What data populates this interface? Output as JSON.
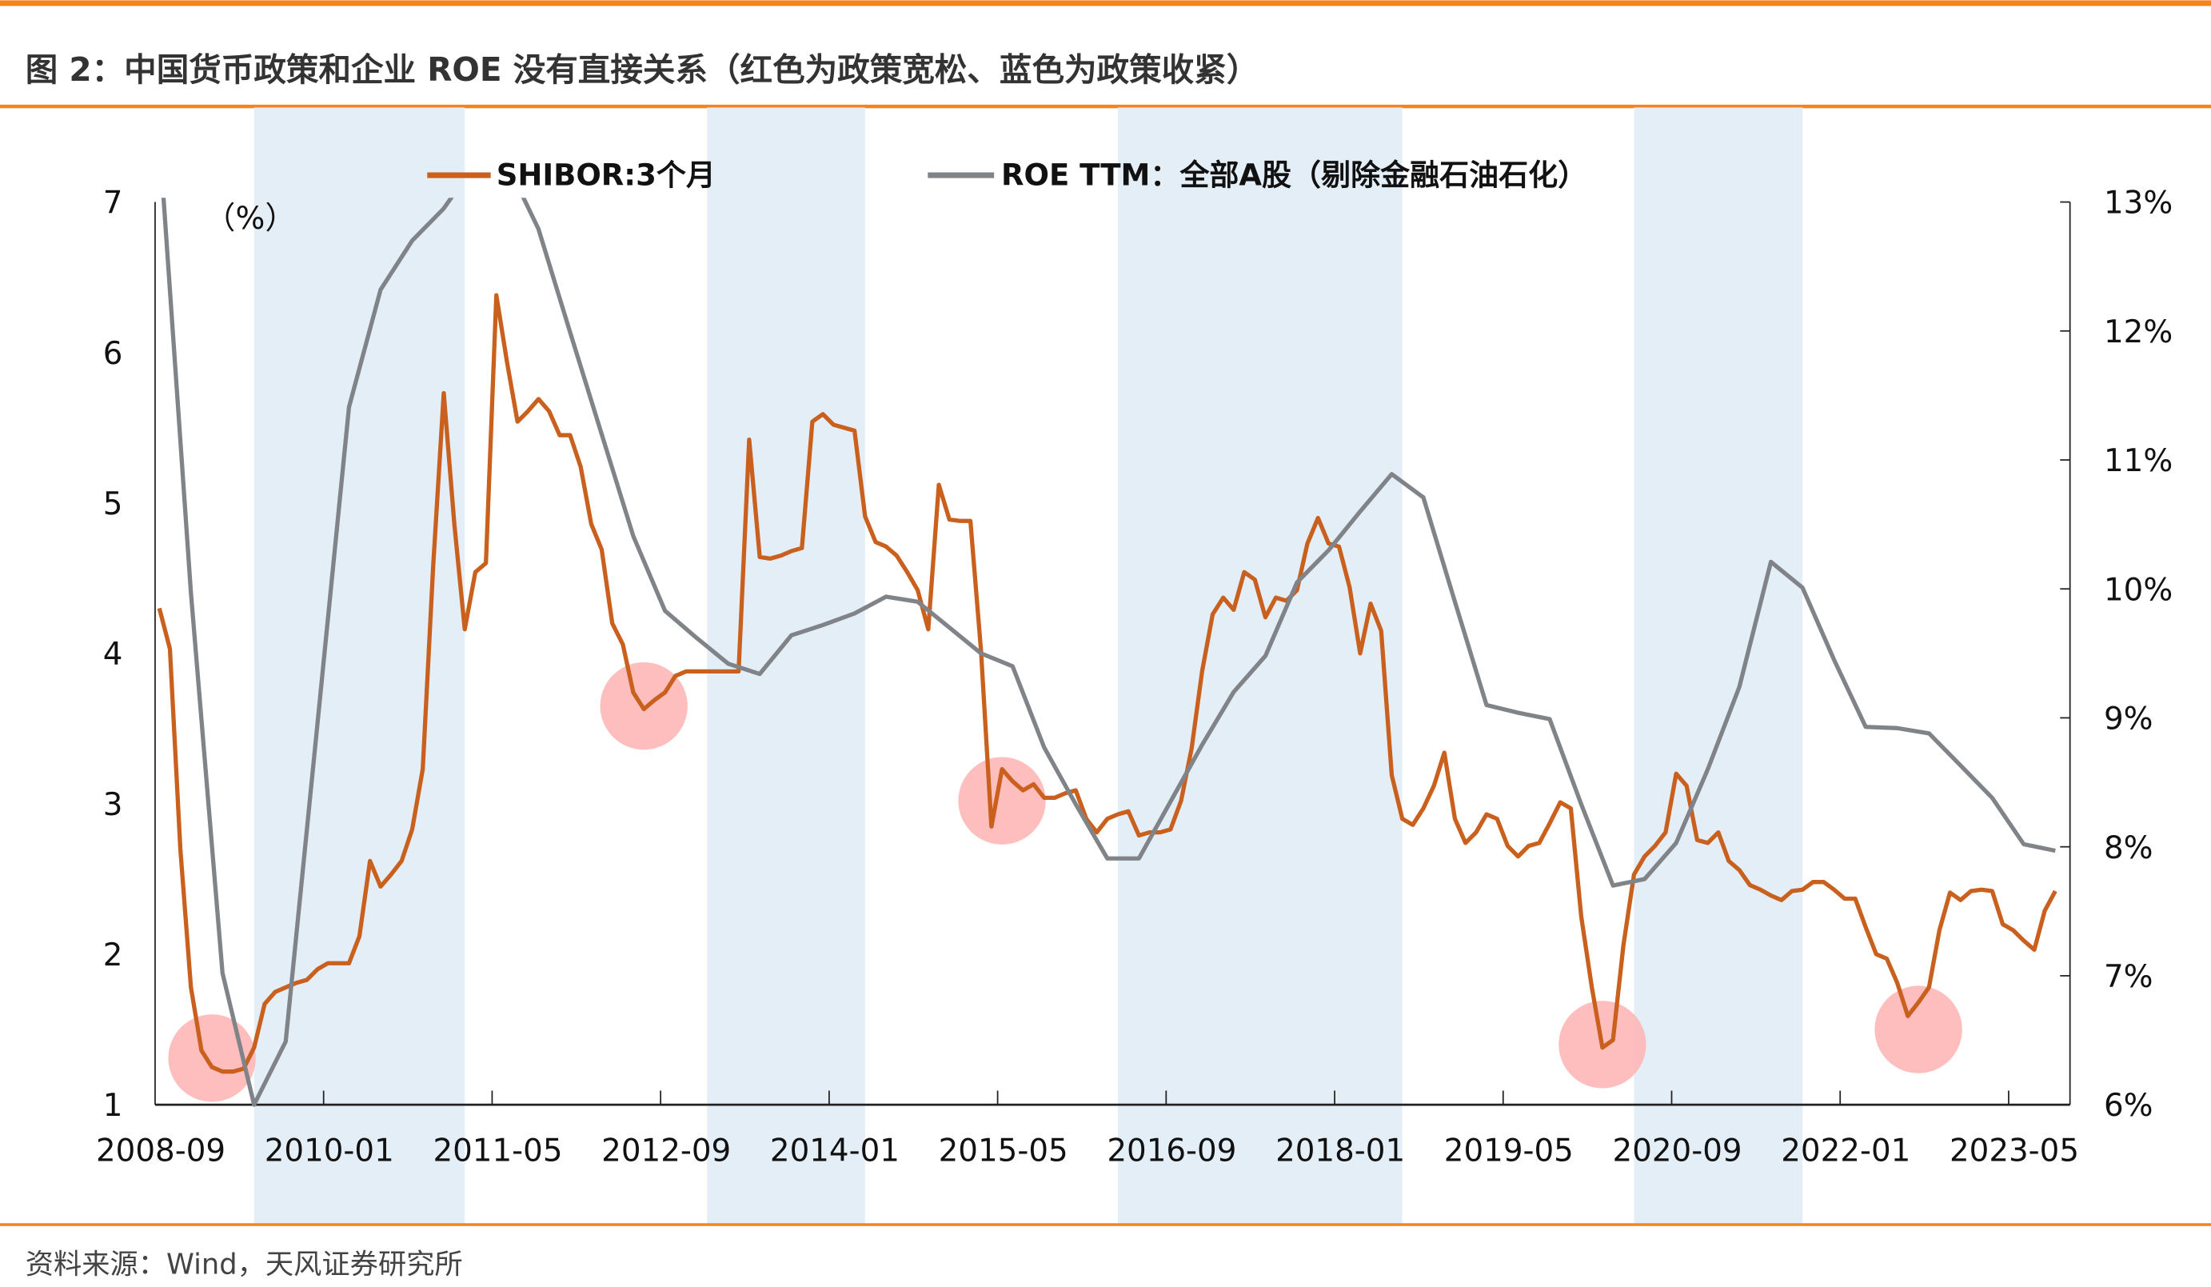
{
  "header": {
    "title": "图 2：中国货币政策和企业 ROE 没有直接关系（红色为政策宽松、蓝色为政策收紧）"
  },
  "footer": {
    "source": "资料来源：Wind，天风证券研究所"
  },
  "colors": {
    "accent": "#F5841F",
    "shibor": "#C9601E",
    "roe": "#808488",
    "band": "#E4EEF7",
    "circle": "#FFB3B3"
  },
  "chart_data": {
    "type": "line",
    "title": "中国货币政策和企业 ROE 没有直接关系（红色为政策宽松、蓝色为政策收紧）",
    "left_unit_label": "（%）",
    "ylim_left": [
      1,
      7
    ],
    "ylim_right": [
      6,
      13
    ],
    "y_ticks_left": [
      "1",
      "2",
      "3",
      "4",
      "5",
      "6",
      "7"
    ],
    "y_ticks_right": [
      "6%",
      "7%",
      "8%",
      "9%",
      "10%",
      "11%",
      "12%",
      "13%"
    ],
    "x_start": "2008-09",
    "x_ticks": [
      "2008-09",
      "2010-01",
      "2011-05",
      "2012-09",
      "2014-01",
      "2015-05",
      "2016-09",
      "2018-01",
      "2019-05",
      "2020-09",
      "2022-01",
      "2023-05"
    ],
    "legend": [
      "SHIBOR:3个月",
      "ROE TTM：全部A股（剔除金融石油石化）"
    ],
    "legend_position": "top-center",
    "series": [
      {
        "name": "SHIBOR:3个月",
        "axis": "left",
        "frequency": "monthly",
        "start": "2008-09",
        "values": [
          4.3,
          4.03,
          2.7,
          1.78,
          1.36,
          1.25,
          1.22,
          1.22,
          1.24,
          1.38,
          1.67,
          1.75,
          1.78,
          1.81,
          1.83,
          1.9,
          1.94,
          1.94,
          1.94,
          2.12,
          2.62,
          2.45,
          2.53,
          2.62,
          2.83,
          3.23,
          4.58,
          5.73,
          4.86,
          4.16,
          4.54,
          4.6,
          6.38,
          5.94,
          5.54,
          5.61,
          5.69,
          5.61,
          5.45,
          5.45,
          5.24,
          4.86,
          4.69,
          4.2,
          4.06,
          3.74,
          3.63,
          3.69,
          3.74,
          3.85,
          3.88,
          3.88,
          3.88,
          3.88,
          3.88,
          3.88,
          5.42,
          4.64,
          4.63,
          4.65,
          4.68,
          4.7,
          5.54,
          5.59,
          5.52,
          5.5,
          5.48,
          4.91,
          4.74,
          4.71,
          4.65,
          4.54,
          4.42,
          4.16,
          5.12,
          4.89,
          4.88,
          4.88,
          4.02,
          2.85,
          3.23,
          3.15,
          3.09,
          3.13,
          3.04,
          3.04,
          3.07,
          3.09,
          2.9,
          2.81,
          2.9,
          2.93,
          2.95,
          2.79,
          2.81,
          2.81,
          2.83,
          3.02,
          3.37,
          3.88,
          4.26,
          4.37,
          4.29,
          4.54,
          4.49,
          4.24,
          4.37,
          4.35,
          4.42,
          4.73,
          4.9,
          4.73,
          4.71,
          4.44,
          4.0,
          4.33,
          4.15,
          3.19,
          2.9,
          2.86,
          2.97,
          3.12,
          3.34,
          2.9,
          2.74,
          2.81,
          2.93,
          2.9,
          2.72,
          2.65,
          2.72,
          2.74,
          2.87,
          3.01,
          2.97,
          2.25,
          1.78,
          1.38,
          1.43,
          2.06,
          2.53,
          2.65,
          2.72,
          2.81,
          3.2,
          3.12,
          2.76,
          2.74,
          2.81,
          2.62,
          2.56,
          2.46,
          2.43,
          2.39,
          2.36,
          2.42,
          2.43,
          2.48,
          2.48,
          2.43,
          2.37,
          2.37,
          2.18,
          2.0,
          1.97,
          1.81,
          1.59,
          1.68,
          1.78,
          2.16,
          2.41,
          2.36,
          2.42,
          2.43,
          2.42,
          2.2,
          2.16,
          2.09,
          2.03,
          2.29,
          2.42
        ]
      },
      {
        "name": "ROE TTM：全部A股（剔除金融石油石化）",
        "axis": "right",
        "frequency": "quarterly",
        "start": "2008-09",
        "values": [
          13.5,
          9.97,
          7.02,
          6.0,
          6.49,
          8.95,
          11.41,
          12.32,
          12.7,
          12.95,
          13.3,
          13.3,
          12.79,
          11.99,
          11.2,
          10.41,
          9.83,
          9.62,
          9.42,
          9.34,
          9.64,
          9.72,
          9.81,
          9.94,
          9.9,
          9.7,
          9.5,
          9.4,
          8.77,
          8.33,
          7.91,
          7.91,
          8.35,
          8.79,
          9.2,
          9.48,
          10.05,
          10.3,
          10.6,
          10.89,
          10.71,
          9.9,
          9.1,
          9.04,
          8.99,
          8.33,
          7.7,
          7.75,
          8.03,
          8.6,
          9.24,
          10.21,
          10.01,
          9.45,
          8.93,
          8.92,
          8.88,
          8.63,
          8.38,
          8.02,
          7.97
        ]
      }
    ],
    "tightening_periods": [
      {
        "start": "2009-06",
        "end": "2011-02"
      },
      {
        "start": "2013-01",
        "end": "2014-04"
      },
      {
        "start": "2016-04",
        "end": "2018-07"
      },
      {
        "start": "2020-05",
        "end": "2021-09"
      }
    ],
    "easing_markers": [
      {
        "date": "2009-02",
        "value": 1.31
      },
      {
        "date": "2012-07",
        "value": 3.65
      },
      {
        "date": "2015-05",
        "value": 3.02
      },
      {
        "date": "2020-02",
        "value": 1.4
      },
      {
        "date": "2022-08",
        "value": 1.5
      }
    ]
  }
}
